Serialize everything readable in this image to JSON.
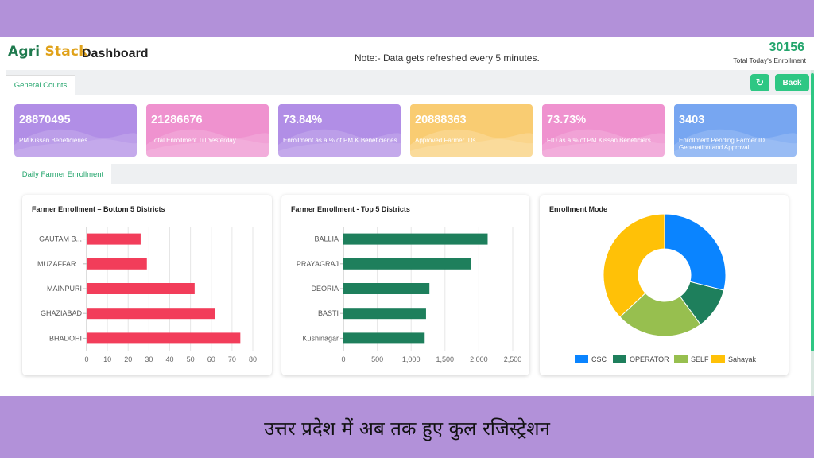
{
  "header": {
    "logo_part1": "Agri",
    "logo_part2": "Stack",
    "title": "Dashboard",
    "note": "Note:- Data gets refreshed every 5 minutes.",
    "total_value": "30156",
    "total_label": "Total Today's Enrollment"
  },
  "tabs": {
    "general": "General Counts",
    "daily": "Daily Farmer Enrollment"
  },
  "buttons": {
    "refresh_icon": "↻",
    "back": "Back"
  },
  "cards": [
    {
      "value": "28870495",
      "label": "PM Kissan Beneficieries",
      "color": "#b18ee6"
    },
    {
      "value": "21286676",
      "label": "Total Enrollment Till Yesterday",
      "color": "#ef92cf"
    },
    {
      "value": "73.84%",
      "label": "Enrollment as a % of PM K Beneficieries",
      "color": "#b18ee6"
    },
    {
      "value": "20888363",
      "label": "Approved Farmer IDs",
      "color": "#f9cc72"
    },
    {
      "value": "73.73%",
      "label": "FID as a % of PM Kissan Beneficiers",
      "color": "#ef92cf"
    },
    {
      "value": "3403",
      "label": "Enrollment Pending Farmer ID Generation and Approval",
      "color": "#77a6f1"
    }
  ],
  "chart_data": [
    {
      "type": "bar",
      "orientation": "horizontal",
      "title": "Farmer Enrollment – Bottom 5 Districts",
      "categories": [
        "GAUTAM B...",
        "MUZAFFAR...",
        "MAINPURI",
        "GHAZIABAD",
        "BHADOHI"
      ],
      "values": [
        26,
        29,
        52,
        62,
        74
      ],
      "color": "#f23d5a",
      "xlim": [
        0,
        80
      ],
      "xticks": [
        "0",
        "10",
        "20",
        "30",
        "40",
        "50",
        "60",
        "70",
        "80"
      ],
      "grid": true
    },
    {
      "type": "bar",
      "orientation": "horizontal",
      "title": "Farmer Enrollment - Top 5 Districts",
      "categories": [
        "BALLIA",
        "PRAYAGRAJ",
        "DEORIA",
        "BASTI",
        "Kushinagar"
      ],
      "values": [
        2130,
        1880,
        1270,
        1220,
        1200
      ],
      "color": "#1e7f5c",
      "xlim": [
        0,
        2500
      ],
      "xticks": [
        "0",
        "500",
        "1,000",
        "1,500",
        "2,000",
        "2,500"
      ],
      "grid": true
    },
    {
      "type": "pie",
      "donut": true,
      "title": "Enrollment Mode",
      "labels": [
        "CSC",
        "OPERATOR",
        "SELF",
        "Sahayak"
      ],
      "values": [
        29,
        11,
        23,
        37
      ],
      "colors": [
        "#0a84ff",
        "#1e7f5c",
        "#97bf4f",
        "#ffc107"
      ],
      "legend": "bottom"
    }
  ],
  "caption": "उत्तर प्रदेश में अब तक हुए कुल रजिस्ट्रेशन"
}
